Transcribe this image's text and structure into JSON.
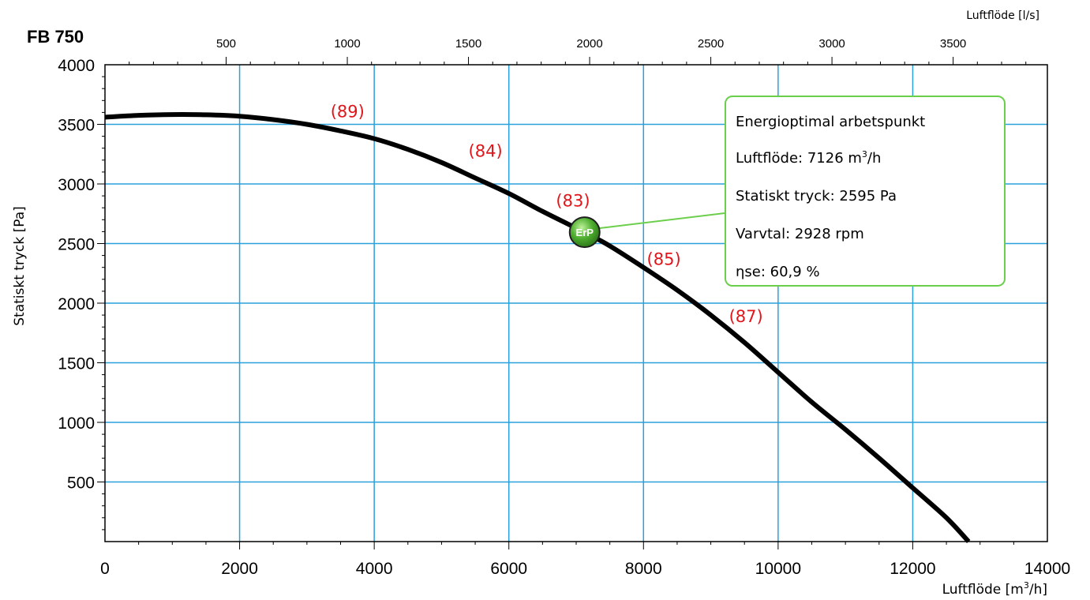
{
  "chart_data": {
    "type": "line",
    "title": "FB 750",
    "xlabel": "Luftflöde [m³/h]",
    "xlabel_base": "Luftflöde [m",
    "xlabel_sup": "3",
    "xlabel_tail": "/h]",
    "x2label": "Luftflöde [l/s]",
    "ylabel": "Statiskt tryck [Pa]",
    "xlim": [
      0,
      14000
    ],
    "ylim": [
      0,
      4000
    ],
    "x2lim_ls": [
      0,
      3888.9
    ],
    "grid": true,
    "x_ticks": [
      "0",
      "2000",
      "4000",
      "6000",
      "8000",
      "10000",
      "12000",
      "14000"
    ],
    "y_ticks": [
      "500",
      "1000",
      "1500",
      "2000",
      "2500",
      "3000",
      "3500",
      "4000"
    ],
    "x2_ticks": [
      "500",
      "1000",
      "1500",
      "2000",
      "2500",
      "3000",
      "3500"
    ],
    "series": [
      {
        "x": [
          0,
          500,
          1000,
          1500,
          2000,
          2500,
          3000,
          3500,
          4000,
          4500,
          5000,
          5500,
          6000,
          6500,
          7000,
          7126,
          7500,
          8000,
          8500,
          9000,
          9500,
          10000,
          10500,
          11000,
          11500,
          12000,
          12500,
          12830
        ],
        "y": [
          3560,
          3575,
          3582,
          3580,
          3568,
          3540,
          3500,
          3445,
          3380,
          3290,
          3180,
          3050,
          2920,
          2770,
          2630,
          2595,
          2480,
          2300,
          2110,
          1900,
          1670,
          1420,
          1170,
          940,
          700,
          450,
          200,
          0
        ]
      }
    ],
    "sound_labels": [
      {
        "text": "(89)",
        "x": 3350,
        "y": 3560
      },
      {
        "text": "(84)",
        "x": 5400,
        "y": 3230
      },
      {
        "text": "(83)",
        "x": 6700,
        "y": 2810
      },
      {
        "text": "(85)",
        "x": 8050,
        "y": 2320
      },
      {
        "text": "(87)",
        "x": 9270,
        "y": 1840
      }
    ],
    "operating_point": {
      "x": 7126,
      "y": 2595,
      "marker_text": "ErP"
    },
    "colors": {
      "grid": "#2aa0dc",
      "curve": "#000000",
      "labels": "#e0161b",
      "marker": "#3f9e2a",
      "callout": "#6ccf4c"
    }
  },
  "annotation": {
    "title": "Energioptimal arbetspunkt",
    "flow_label": "Luftflöde: 7126 m",
    "flow_sup": "3",
    "flow_unit": "/h",
    "pressure": "Statiskt tryck: 2595 Pa",
    "speed": "Varvtal: 2928 rpm",
    "efficiency": "ηse: 60,9 %"
  }
}
